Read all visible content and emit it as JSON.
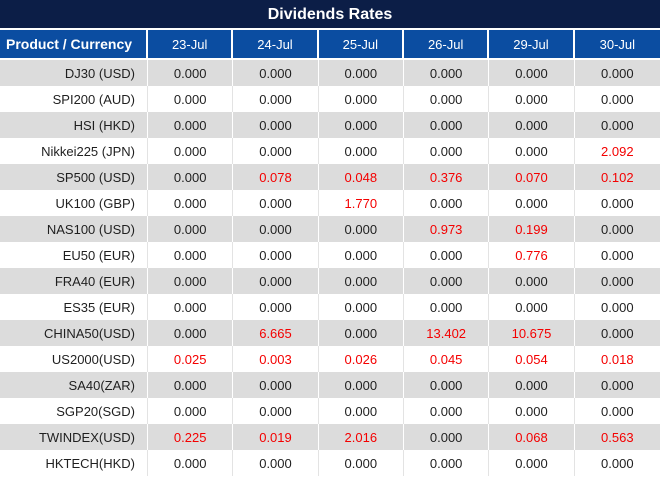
{
  "title": "Dividends Rates",
  "columns": [
    "Product / Currency",
    "23-Jul",
    "24-Jul",
    "25-Jul",
    "26-Jul",
    "29-Jul",
    "30-Jul"
  ],
  "rows": [
    {
      "product": "DJ30 (USD)",
      "values": [
        "0.000",
        "0.000",
        "0.000",
        "0.000",
        "0.000",
        "0.000"
      ],
      "red": [
        0,
        0,
        0,
        0,
        0,
        0
      ]
    },
    {
      "product": "SPI200 (AUD)",
      "values": [
        "0.000",
        "0.000",
        "0.000",
        "0.000",
        "0.000",
        "0.000"
      ],
      "red": [
        0,
        0,
        0,
        0,
        0,
        0
      ]
    },
    {
      "product": "HSI (HKD)",
      "values": [
        "0.000",
        "0.000",
        "0.000",
        "0.000",
        "0.000",
        "0.000"
      ],
      "red": [
        0,
        0,
        0,
        0,
        0,
        0
      ]
    },
    {
      "product": "Nikkei225 (JPN)",
      "values": [
        "0.000",
        "0.000",
        "0.000",
        "0.000",
        "0.000",
        "2.092"
      ],
      "red": [
        0,
        0,
        0,
        0,
        0,
        1
      ]
    },
    {
      "product": "SP500 (USD)",
      "values": [
        "0.000",
        "0.078",
        "0.048",
        "0.376",
        "0.070",
        "0.102"
      ],
      "red": [
        0,
        1,
        1,
        1,
        1,
        1
      ]
    },
    {
      "product": "UK100 (GBP)",
      "values": [
        "0.000",
        "0.000",
        "1.770",
        "0.000",
        "0.000",
        "0.000"
      ],
      "red": [
        0,
        0,
        1,
        0,
        0,
        0
      ]
    },
    {
      "product": "NAS100 (USD)",
      "values": [
        "0.000",
        "0.000",
        "0.000",
        "0.973",
        "0.199",
        "0.000"
      ],
      "red": [
        0,
        0,
        0,
        1,
        1,
        0
      ]
    },
    {
      "product": "EU50 (EUR)",
      "values": [
        "0.000",
        "0.000",
        "0.000",
        "0.000",
        "0.776",
        "0.000"
      ],
      "red": [
        0,
        0,
        0,
        0,
        1,
        0
      ]
    },
    {
      "product": "FRA40 (EUR)",
      "values": [
        "0.000",
        "0.000",
        "0.000",
        "0.000",
        "0.000",
        "0.000"
      ],
      "red": [
        0,
        0,
        0,
        0,
        0,
        0
      ]
    },
    {
      "product": "ES35 (EUR)",
      "values": [
        "0.000",
        "0.000",
        "0.000",
        "0.000",
        "0.000",
        "0.000"
      ],
      "red": [
        0,
        0,
        0,
        0,
        0,
        0
      ]
    },
    {
      "product": "CHINA50(USD)",
      "values": [
        "0.000",
        "6.665",
        "0.000",
        "13.402",
        "10.675",
        "0.000"
      ],
      "red": [
        0,
        1,
        0,
        1,
        1,
        0
      ]
    },
    {
      "product": "US2000(USD)",
      "values": [
        "0.025",
        "0.003",
        "0.026",
        "0.045",
        "0.054",
        "0.018"
      ],
      "red": [
        1,
        1,
        1,
        1,
        1,
        1
      ]
    },
    {
      "product": "SA40(ZAR)",
      "values": [
        "0.000",
        "0.000",
        "0.000",
        "0.000",
        "0.000",
        "0.000"
      ],
      "red": [
        0,
        0,
        0,
        0,
        0,
        0
      ]
    },
    {
      "product": "SGP20(SGD)",
      "values": [
        "0.000",
        "0.000",
        "0.000",
        "0.000",
        "0.000",
        "0.000"
      ],
      "red": [
        0,
        0,
        0,
        0,
        0,
        0
      ]
    },
    {
      "product": "TWINDEX(USD)",
      "values": [
        "0.225",
        "0.019",
        "2.016",
        "0.000",
        "0.068",
        "0.563"
      ],
      "red": [
        1,
        1,
        1,
        0,
        1,
        1
      ]
    },
    {
      "product": "HKTECH(HKD)",
      "values": [
        "0.000",
        "0.000",
        "0.000",
        "0.000",
        "0.000",
        "0.000"
      ],
      "red": [
        0,
        0,
        0,
        0,
        0,
        0
      ]
    }
  ],
  "colors": {
    "title_bg": "#0c1e47",
    "header_bg": "#0b4da1",
    "row_alt_bg": "#dcdcdc",
    "highlight": "#f40000",
    "text": "#1f1f1f"
  }
}
